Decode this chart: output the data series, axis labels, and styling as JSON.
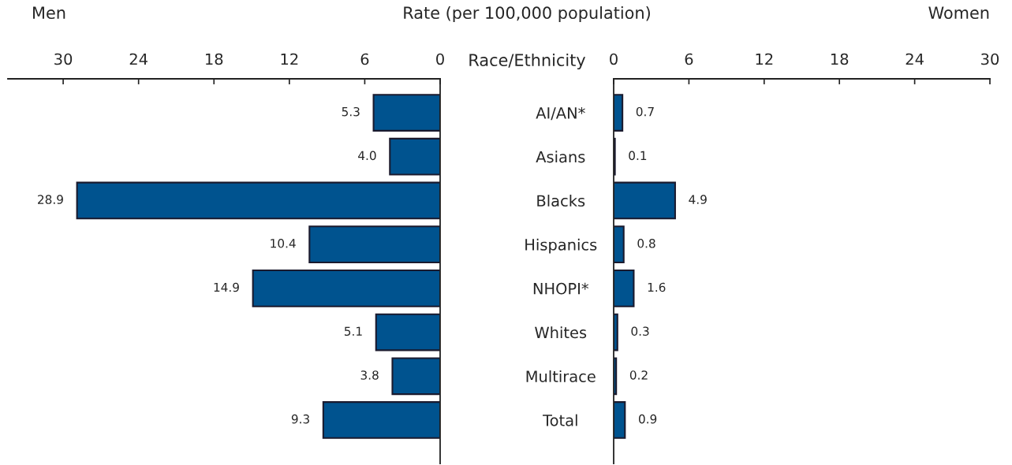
{
  "chart_data": [
    {
      "type": "bar",
      "orientation": "horizontal",
      "title": "Men",
      "xlabel": "Rate (per 100,000 population)",
      "ylabel": "Race/Ethnicity",
      "categories": [
        "AI/AN*",
        "Asians",
        "Blacks",
        "Hispanics",
        "NHOPI*",
        "Whites",
        "Multirace",
        "Total"
      ],
      "values": [
        5.3,
        4.0,
        28.9,
        10.4,
        14.9,
        5.1,
        3.8,
        9.3
      ],
      "color": "#00538f",
      "xlim": [
        34.4,
        0
      ],
      "xticks": [
        30,
        24,
        18,
        12,
        6,
        0
      ],
      "value_labels": [
        "5.3",
        "4.0",
        "28.9",
        "10.4",
        "14.9",
        "5.1",
        "3.8",
        "9.3"
      ],
      "grid": false,
      "legend": false
    },
    {
      "type": "bar",
      "orientation": "horizontal",
      "title": "Women",
      "values": [
        0.7,
        0.1,
        4.9,
        0.8,
        1.6,
        0.3,
        0.2,
        0.9
      ],
      "color": "#00538f",
      "xlim": [
        0,
        30
      ],
      "xticks": [
        0,
        6,
        12,
        18,
        24,
        30
      ],
      "value_labels": [
        "0.7",
        "0.1",
        "4.9",
        "0.8",
        "1.6",
        "0.3",
        "0.2",
        "0.9"
      ],
      "grid": false,
      "legend": false,
      "tick_labels": "x"
    }
  ]
}
